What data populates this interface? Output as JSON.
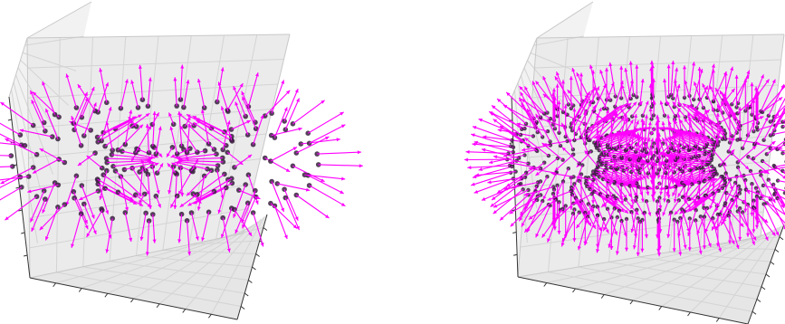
{
  "chart_data": [
    {
      "type": "scatter",
      "plot_kind": "3d-quiver",
      "title": "",
      "xlabel": "",
      "ylabel": "",
      "zlabel": "",
      "shape": "torus",
      "sampling": "sparse",
      "ring_points": 20,
      "tube_points": 10,
      "major_radius": 1.0,
      "minor_radius": 0.45,
      "vector_field": "surface-normal",
      "arrow_color": "#ff00ff",
      "point_color": "#3a2040",
      "grid": true,
      "pane_color": "#f2f2f2",
      "grid_color": "#d4d4d4",
      "axis_color": "#333333"
    },
    {
      "type": "scatter",
      "plot_kind": "3d-quiver",
      "title": "",
      "xlabel": "",
      "ylabel": "",
      "zlabel": "",
      "shape": "torus",
      "sampling": "dense",
      "ring_points": 40,
      "tube_points": 16,
      "major_radius": 1.0,
      "minor_radius": 0.45,
      "vector_field": "surface-normal",
      "arrow_color": "#ff00ff",
      "point_color": "#3a2040",
      "grid": true,
      "pane_color": "#f2f2f2",
      "grid_color": "#d4d4d4",
      "axis_color": "#333333"
    }
  ]
}
